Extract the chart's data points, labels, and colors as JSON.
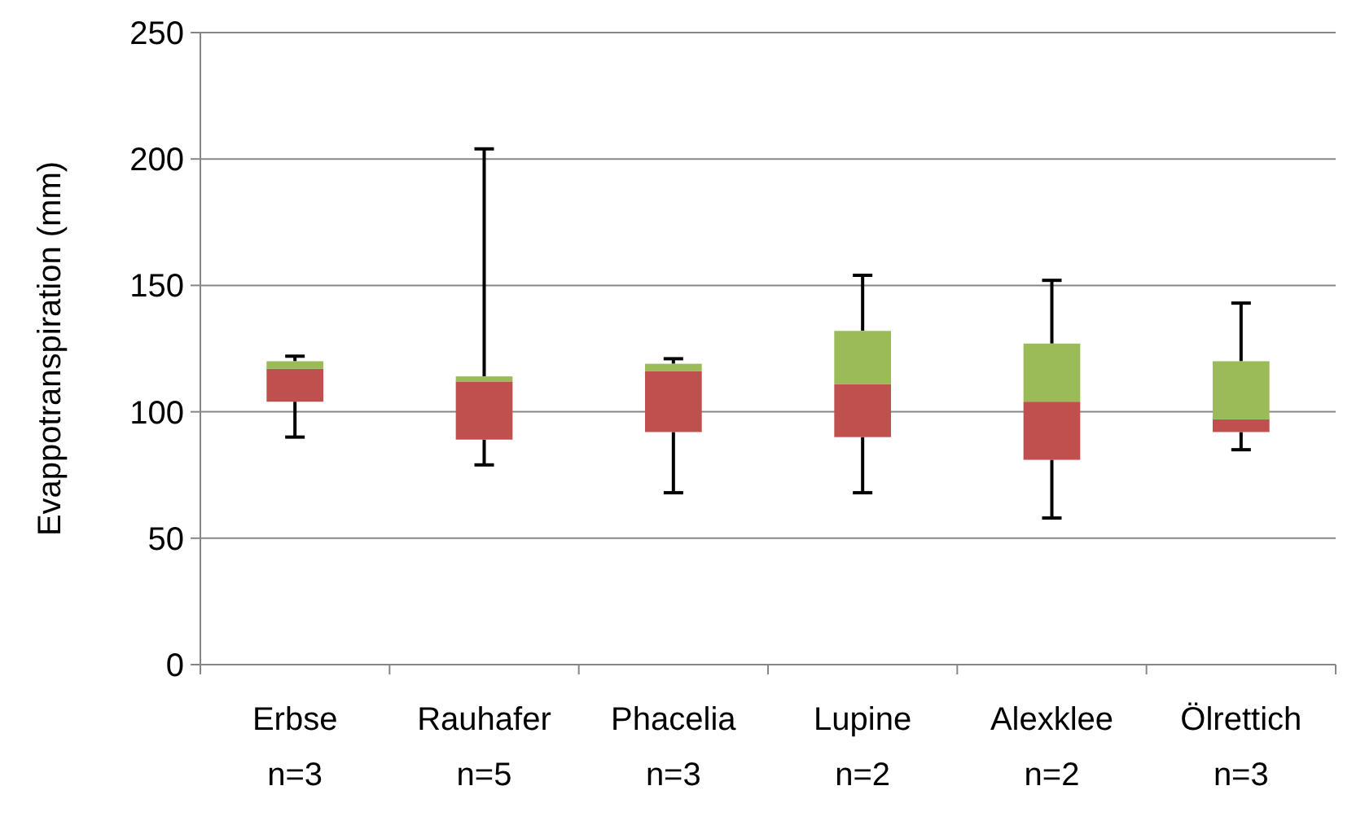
{
  "chart_data": {
    "type": "box",
    "ylabel": "Evappotranspiration (mm)",
    "categories": [
      "Erbse\nn=3",
      "Rauhafer\nn=5",
      "Phacelia\nn=3",
      "Lupine\nn=2",
      "Alexklee\nn=2",
      "Ölrettich\nn=3"
    ],
    "series": [
      {
        "color": "#9bbb59",
        "colors": [
          "#c0504d",
          "#c0504d",
          "#c0504d",
          "#c0504d",
          "#c0504d",
          "#c0504d"
        ],
        "boxes": [
          {
            "low": 90,
            "q1": 104,
            "median": 117,
            "q3": 120,
            "high": 122
          },
          {
            "low": 79,
            "q1": 89,
            "median": 112,
            "q3": 114,
            "high": 204
          },
          {
            "low": 68,
            "q1": 92,
            "median": 116,
            "q3": 119,
            "high": 121
          },
          {
            "low": 68,
            "q1": 90,
            "median": 111,
            "q3": 132,
            "high": 154
          },
          {
            "low": 58,
            "q1": 81,
            "median": 104,
            "q3": 127,
            "high": 152
          },
          {
            "low": 85,
            "q1": 92,
            "median": 97,
            "q3": 120,
            "high": 143
          }
        ]
      }
    ],
    "ylim": [
      0,
      250
    ],
    "yticks": [
      0,
      50,
      100,
      150,
      200,
      250
    ],
    "grid": "y"
  }
}
